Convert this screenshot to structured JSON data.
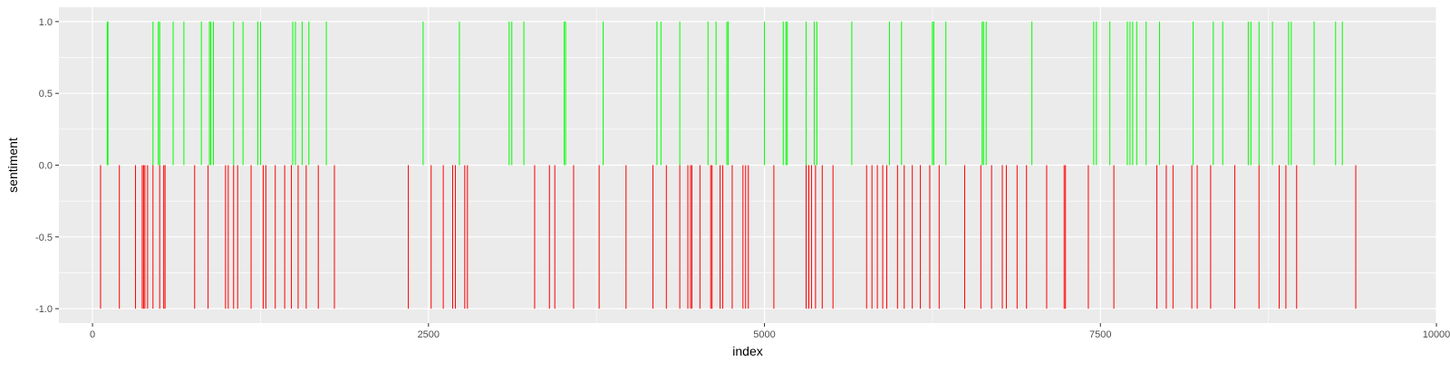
{
  "chart_data": {
    "type": "bar",
    "title": "",
    "xlabel": "index",
    "ylabel": "sentiment",
    "xlim": [
      -250,
      10000
    ],
    "ylim": [
      -1.1,
      1.1
    ],
    "x_ticks": [
      0,
      2500,
      5000,
      7500,
      10000
    ],
    "x_tick_labels": [
      "0",
      "2500",
      "5000",
      "7500",
      "10000"
    ],
    "y_ticks": [
      -1.0,
      -0.5,
      0.0,
      0.5,
      1.0
    ],
    "y_tick_labels": [
      "-1.0",
      "-0.5",
      "0.0",
      "0.5",
      "1.0"
    ],
    "grid": true,
    "legend": "none",
    "series": [
      {
        "value": 1,
        "color": "#00ff00",
        "x": [
          110,
          115,
          450,
          490,
          500,
          600,
          680,
          810,
          870,
          880,
          900,
          1050,
          1120,
          1230,
          1250,
          1490,
          1510,
          1560,
          1610,
          1740,
          2460,
          2730,
          3100,
          3120,
          3210,
          3510,
          3520,
          3800,
          4200,
          4230,
          4370,
          4580,
          4640,
          4720,
          4730,
          5000,
          5140,
          5160,
          5170,
          5310,
          5370,
          5390,
          5650,
          5930,
          6020,
          6250,
          6260,
          6350,
          6620,
          6630,
          6650,
          6990,
          7450,
          7470,
          7570,
          7700,
          7720,
          7740,
          7770,
          7840,
          7940,
          8190,
          8340,
          8410,
          8600,
          8620,
          8680,
          8780,
          8900,
          8920,
          9090,
          9250,
          9300
        ]
      },
      {
        "value": -1,
        "color": "#ff0000",
        "x": [
          60,
          200,
          320,
          370,
          380,
          390,
          410,
          450,
          500,
          530,
          540,
          760,
          860,
          990,
          1010,
          1050,
          1080,
          1180,
          1270,
          1290,
          1360,
          1430,
          1480,
          1530,
          1590,
          1680,
          1800,
          2350,
          2520,
          2610,
          2680,
          2700,
          2770,
          2790,
          3290,
          3400,
          3440,
          3580,
          3770,
          3970,
          4170,
          4270,
          4370,
          4430,
          4450,
          4460,
          4520,
          4600,
          4610,
          4670,
          4690,
          4760,
          4840,
          4860,
          4880,
          5070,
          5310,
          5330,
          5350,
          5380,
          5430,
          5510,
          5760,
          5800,
          5840,
          5880,
          5910,
          5990,
          6040,
          6100,
          6160,
          6230,
          6300,
          6490,
          6610,
          6690,
          6770,
          6800,
          6880,
          6950,
          7100,
          7230,
          7240,
          7410,
          7600,
          7920,
          7990,
          8040,
          8180,
          8220,
          8320,
          8500,
          8680,
          8830,
          8880,
          8960,
          9400
        ]
      }
    ]
  }
}
